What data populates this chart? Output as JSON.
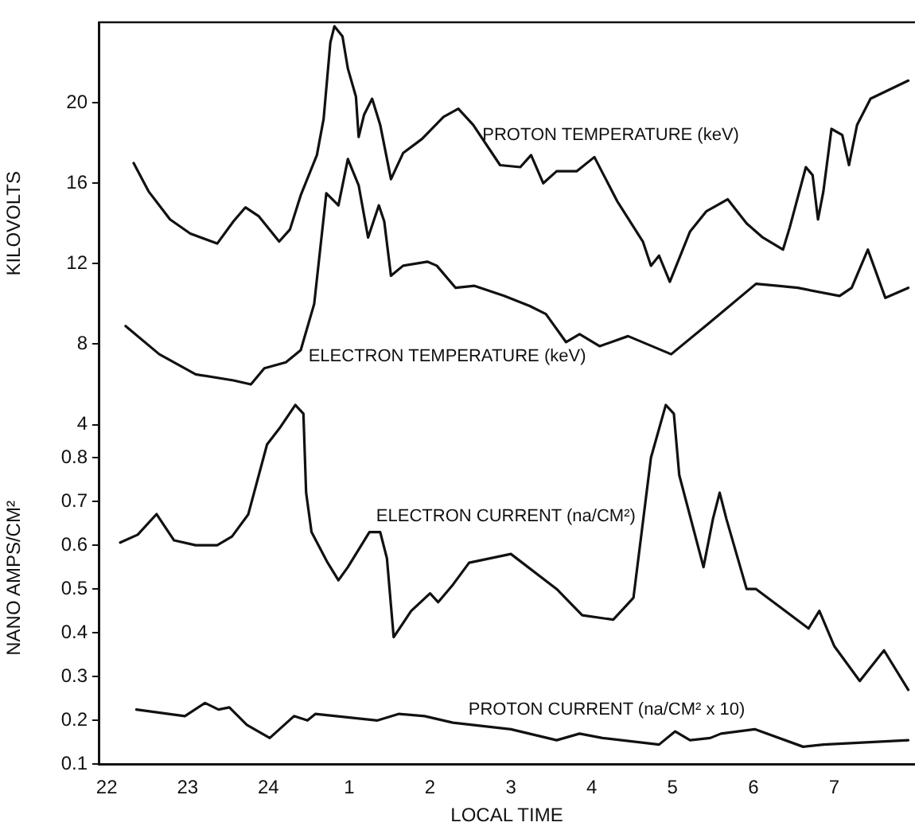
{
  "chart_data": [
    {
      "type": "line",
      "ylabel": "KILOVOLTS",
      "xlim": [
        "--01-01T21:54",
        "--01-02T08:00"
      ],
      "ylim": [
        4,
        24
      ],
      "yticks": [
        4,
        8,
        12,
        16,
        20
      ],
      "tick_labels": "y",
      "marker": "none",
      "line_style": "solid",
      "series": [
        {
          "color": "#111111",
          "x": [
            "--01-01T22:20",
            "--01-01T22:31",
            "--01-01T22:47",
            "--01-01T23:02",
            "--01-01T23:22",
            "--01-01T23:34",
            "--01-01T23:43",
            "--01-01T23:53",
            "--01-02T00:08",
            "--01-02T00:16",
            "--01-02T00:24",
            "--01-02T00:36",
            "--01-02T00:41",
            "--01-02T00:46",
            "--01-02T00:49",
            "--01-02T00:55",
            "--01-02T00:59",
            "--01-02T01:05",
            "--01-02T01:07",
            "--01-02T01:11",
            "--01-02T01:17",
            "--01-02T01:23",
            "--01-02T01:31",
            "--01-02T01:40",
            "--01-02T01:54",
            "--01-02T02:10",
            "--01-02T02:21",
            "--01-02T02:32",
            "--01-02T02:52",
            "--01-02T03:07",
            "--01-02T03:15",
            "--01-02T03:24",
            "--01-02T03:34",
            "--01-02T03:49",
            "--01-02T04:02",
            "--01-02T04:19",
            "--01-02T04:38",
            "--01-02T04:44",
            "--01-02T04:50",
            "--01-02T04:58",
            "--01-02T05:13",
            "--01-02T05:25",
            "--01-02T05:41",
            "--01-02T05:55",
            "--01-02T06:07",
            "--01-02T06:22",
            "--01-02T06:27",
            "--01-02T06:39",
            "--01-02T06:44",
            "--01-02T06:48",
            "--01-02T06:52",
            "--01-02T06:58",
            "--01-02T07:06",
            "--01-02T07:11",
            "--01-02T07:17",
            "--01-02T07:27",
            "--01-02T07:55"
          ],
          "values": [
            17.0,
            15.6,
            14.2,
            13.5,
            13.0,
            14.1,
            14.8,
            14.35,
            13.1,
            13.7,
            15.4,
            17.4,
            19.2,
            23.0,
            23.8,
            23.3,
            21.7,
            20.3,
            18.3,
            19.4,
            20.2,
            18.9,
            16.2,
            17.5,
            18.2,
            19.3,
            19.7,
            18.9,
            16.9,
            16.8,
            17.4,
            16.0,
            16.6,
            16.6,
            17.3,
            15.1,
            13.1,
            11.9,
            12.4,
            11.1,
            13.6,
            14.6,
            15.2,
            14.0,
            13.3,
            12.7,
            13.8,
            16.8,
            16.4,
            14.2,
            15.6,
            18.7,
            18.4,
            16.9,
            18.9,
            20.2,
            21.1
          ]
        },
        {
          "color": "#111111",
          "x": [
            "--01-01T22:14",
            "--01-01T22:39",
            "--01-01T23:06",
            "--01-01T23:34",
            "--01-01T23:47",
            "--01-01T23:57",
            "--01-02T00:13",
            "--01-02T00:24",
            "--01-02T00:34",
            "--01-02T00:43",
            "--01-02T00:52",
            "--01-02T00:59",
            "--01-02T01:07",
            "--01-02T01:14",
            "--01-02T01:22",
            "--01-02T01:26",
            "--01-02T01:31",
            "--01-02T01:40",
            "--01-02T01:58",
            "--01-02T02:05",
            "--01-02T02:19",
            "--01-02T02:33",
            "--01-02T02:55",
            "--01-02T03:14",
            "--01-02T03:26",
            "--01-02T03:41",
            "--01-02T03:51",
            "--01-02T04:06",
            "--01-02T04:27",
            "--01-02T04:59",
            "--01-02T05:28",
            "--01-02T06:02",
            "--01-02T06:18",
            "--01-02T06:33",
            "--01-02T07:04",
            "--01-02T07:13",
            "--01-02T07:25",
            "--01-02T07:38",
            "--01-02T07:55"
          ],
          "values": [
            8.9,
            7.5,
            6.5,
            6.2,
            6.0,
            6.8,
            7.1,
            7.7,
            10.0,
            15.5,
            14.9,
            17.2,
            15.9,
            13.3,
            14.9,
            14.1,
            11.4,
            11.9,
            12.1,
            11.9,
            10.8,
            10.9,
            10.4,
            9.9,
            9.5,
            8.1,
            8.5,
            7.9,
            8.4,
            7.5,
            9.1,
            11.0,
            10.9,
            10.8,
            10.4,
            10.8,
            12.7,
            10.3,
            10.8
          ]
        }
      ],
      "annotations": [
        "PROTON TEMPERATURE (keV)",
        "ELECTRON TEMPERATURE (keV)"
      ]
    },
    {
      "type": "line",
      "xlabel": "LOCAL TIME",
      "ylabel": "NANO AMPS/CM²",
      "xlim": [
        "--01-01T21:54",
        "--01-02T08:00"
      ],
      "ylim": [
        0.1,
        0.95
      ],
      "xticks": [
        {
          "value": "--01-01T22:00",
          "label": "22"
        },
        {
          "value": "--01-01T23:00",
          "label": "23"
        },
        {
          "value": "--01-02T00:00",
          "label": "24"
        },
        {
          "value": "--01-02T01:00",
          "label": "1"
        },
        {
          "value": "--01-02T02:00",
          "label": "2"
        },
        {
          "value": "--01-02T03:00",
          "label": "3"
        },
        {
          "value": "--01-02T04:00",
          "label": "4"
        },
        {
          "value": "--01-02T05:00",
          "label": "5"
        },
        {
          "value": "--01-02T06:00",
          "label": "6"
        },
        {
          "value": "--01-02T07:00",
          "label": "7"
        }
      ],
      "yticks": [
        0.1,
        0.2,
        0.3,
        0.4,
        0.5,
        0.6,
        0.7,
        0.8
      ],
      "marker": "none",
      "line_style": "solid",
      "series": [
        {
          "color": "#111111",
          "x": [
            "--01-01T22:10",
            "--01-01T22:23",
            "--01-01T22:37",
            "--01-01T22:50",
            "--01-01T23:06",
            "--01-01T23:22",
            "--01-01T23:33",
            "--01-01T23:45",
            "--01-01T23:59",
            "--01-02T00:09",
            "--01-02T00:20",
            "--01-02T00:26",
            "--01-02T00:28",
            "--01-02T00:32",
            "--01-02T00:44",
            "--01-02T00:52",
            "--01-02T00:59",
            "--01-02T01:15",
            "--01-02T01:23",
            "--01-02T01:28",
            "--01-02T01:33",
            "--01-02T01:46",
            "--01-02T02:00",
            "--01-02T02:06",
            "--01-02T02:17",
            "--01-02T02:29",
            "--01-02T03:00",
            "--01-02T03:34",
            "--01-02T03:53",
            "--01-02T04:16",
            "--01-02T04:31",
            "--01-02T04:44",
            "--01-02T04:55",
            "--01-02T05:01",
            "--01-02T05:05",
            "--01-02T05:23",
            "--01-02T05:30",
            "--01-02T05:35",
            "--01-02T05:40",
            "--01-02T05:55",
            "--01-02T06:02",
            "--01-02T06:41",
            "--01-02T06:49",
            "--01-02T07:00",
            "--01-02T07:19",
            "--01-02T07:37",
            "--01-02T07:55"
          ],
          "values": [
            0.606,
            0.624,
            0.671,
            0.611,
            0.6,
            0.6,
            0.62,
            0.67,
            0.83,
            0.87,
            0.92,
            0.9,
            0.72,
            0.63,
            0.56,
            0.52,
            0.55,
            0.63,
            0.63,
            0.57,
            0.39,
            0.45,
            0.49,
            0.47,
            0.51,
            0.56,
            0.58,
            0.5,
            0.44,
            0.43,
            0.48,
            0.8,
            0.92,
            0.9,
            0.76,
            0.55,
            0.66,
            0.72,
            0.66,
            0.5,
            0.5,
            0.41,
            0.45,
            0.37,
            0.29,
            0.36,
            0.27
          ]
        },
        {
          "color": "#111111",
          "x": [
            "--01-01T22:22",
            "--01-01T22:58",
            "--01-01T23:13",
            "--01-01T23:23",
            "--01-01T23:31",
            "--01-01T23:44",
            "--01-02T00:01",
            "--01-02T00:19",
            "--01-02T00:29",
            "--01-02T00:35",
            "--01-02T01:21",
            "--01-02T01:37",
            "--01-02T01:56",
            "--01-02T02:17",
            "--01-02T03:00",
            "--01-02T03:34",
            "--01-02T03:51",
            "--01-02T04:08",
            "--01-02T04:50",
            "--01-02T05:02",
            "--01-02T05:13",
            "--01-02T05:28",
            "--01-02T05:36",
            "--01-02T06:01",
            "--01-02T06:37",
            "--01-02T06:52",
            "--01-02T07:55"
          ],
          "values": [
            0.225,
            0.21,
            0.24,
            0.225,
            0.23,
            0.19,
            0.16,
            0.21,
            0.2,
            0.215,
            0.2,
            0.215,
            0.21,
            0.195,
            0.18,
            0.155,
            0.17,
            0.16,
            0.145,
            0.175,
            0.155,
            0.16,
            0.17,
            0.18,
            0.14,
            0.145,
            0.155
          ]
        }
      ],
      "annotations": [
        "ELECTRON CURRENT (na/CM²)",
        "PROTON CURRENT (na/CM² x 10)"
      ]
    }
  ]
}
